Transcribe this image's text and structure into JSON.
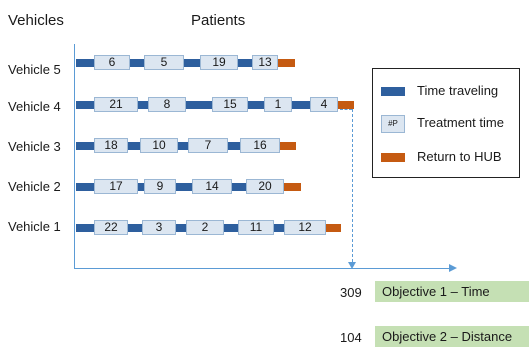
{
  "header": {
    "vehicles": "Vehicles",
    "patients": "Patients"
  },
  "vehicles": [
    {
      "label": "Vehicle 5",
      "patients": [
        "6",
        "5",
        "19",
        "13"
      ]
    },
    {
      "label": "Vehicle 4",
      "patients": [
        "21",
        "8",
        "15",
        "1",
        "4"
      ]
    },
    {
      "label": "Vehicle 3",
      "patients": [
        "18",
        "10",
        "7",
        "16"
      ]
    },
    {
      "label": "Vehicle 2",
      "patients": [
        "17",
        "9",
        "14",
        "20"
      ]
    },
    {
      "label": "Vehicle 1",
      "patients": [
        "22",
        "3",
        "2",
        "11",
        "12"
      ]
    }
  ],
  "legend": {
    "travel": "Time traveling",
    "treatment_marker": "#P",
    "treatment": "Treatment time",
    "return": "Return to HUB"
  },
  "objectives": [
    {
      "value": "309",
      "label": "Objective 1 – Time"
    },
    {
      "value": "104",
      "label": "Objective 2 – Distance"
    }
  ],
  "colors": {
    "travel": "#2e5f9e",
    "return": "#c55a11",
    "treatment": "#dce6f1",
    "objective_box": "#c5e0b4",
    "axis": "#5b9bd5"
  }
}
